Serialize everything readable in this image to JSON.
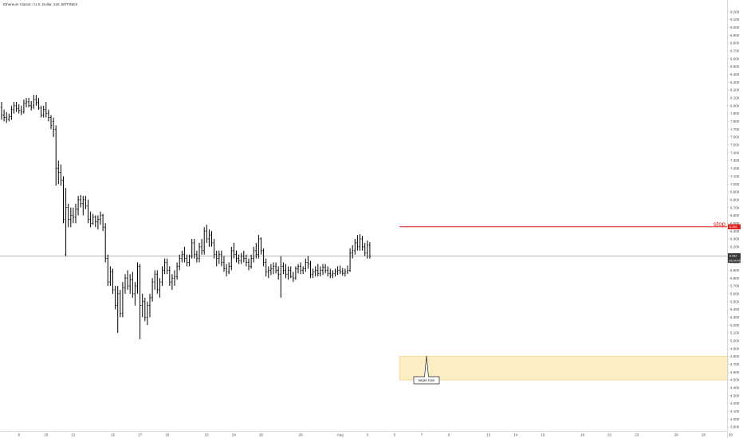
{
  "chart_data": {
    "type": "bar",
    "title": "Ethereum Classic / U.S. Dollar, 240, BITFINEX",
    "ylim": [
      3.85,
      9.35
    ],
    "y_ticks": [
      "9.200",
      "9.100",
      "9.000",
      "8.900",
      "8.800",
      "8.700",
      "8.600",
      "8.500",
      "8.400",
      "8.300",
      "8.200",
      "8.100",
      "8.000",
      "7.900",
      "7.800",
      "7.700",
      "7.600",
      "7.500",
      "7.400",
      "7.300",
      "7.200",
      "7.100",
      "7.000",
      "6.900",
      "6.800",
      "6.700",
      "6.600",
      "6.500",
      "6.400",
      "6.300",
      "6.200",
      "6.100",
      "6.000",
      "5.900",
      "5.800",
      "5.700",
      "5.600",
      "5.500",
      "5.400",
      "5.300",
      "5.200",
      "5.100",
      "5.000",
      "4.900",
      "4.800",
      "4.700",
      "4.600",
      "4.500",
      "4.400",
      "4.300",
      "4.200",
      "4.100",
      "4.000",
      "3.900"
    ],
    "x_ticks": [
      {
        "label": "8",
        "bar": 7
      },
      {
        "label": "10",
        "bar": 18
      },
      {
        "label": "12",
        "bar": 29
      },
      {
        "label": "15",
        "bar": 45
      },
      {
        "label": "17",
        "bar": 56
      },
      {
        "label": "19",
        "bar": 67
      },
      {
        "label": "22",
        "bar": 83
      },
      {
        "label": "24",
        "bar": 94
      },
      {
        "label": "26",
        "bar": 105
      },
      {
        "label": "29",
        "bar": 121
      },
      {
        "label": "Aug",
        "bar": 137
      },
      {
        "label": "3",
        "bar": 148
      },
      {
        "label": "5",
        "bar": 159
      },
      {
        "label": "7",
        "bar": 170
      },
      {
        "label": "9",
        "bar": 181
      },
      {
        "label": "12",
        "bar": 197
      },
      {
        "label": "14",
        "bar": 208
      },
      {
        "label": "16",
        "bar": 219
      },
      {
        "label": "19",
        "bar": 235
      },
      {
        "label": "21",
        "bar": 246
      },
      {
        "label": "23",
        "bar": 257
      },
      {
        "label": "26",
        "bar": 273
      },
      {
        "label": "28",
        "bar": 284
      },
      {
        "label": "30",
        "bar": 295
      }
    ],
    "ohlc": [
      [
        7.98,
        8.05,
        7.82,
        7.88
      ],
      [
        7.88,
        7.95,
        7.8,
        7.85
      ],
      [
        7.85,
        7.92,
        7.78,
        7.83
      ],
      [
        7.83,
        7.9,
        7.8,
        7.86
      ],
      [
        7.86,
        8.0,
        7.82,
        7.95
      ],
      [
        7.95,
        8.05,
        7.9,
        8.0
      ],
      [
        8.0,
        8.05,
        7.92,
        7.96
      ],
      [
        7.96,
        8.02,
        7.9,
        7.94
      ],
      [
        7.94,
        8.0,
        7.88,
        7.92
      ],
      [
        7.92,
        8.08,
        7.9,
        8.03
      ],
      [
        8.03,
        8.1,
        7.98,
        8.05
      ],
      [
        8.05,
        8.1,
        7.98,
        8.0
      ],
      [
        8.0,
        8.06,
        7.94,
        7.98
      ],
      [
        8.0,
        8.14,
        7.96,
        8.08
      ],
      [
        8.08,
        8.14,
        8.0,
        8.04
      ],
      [
        8.04,
        8.1,
        7.95,
        7.97
      ],
      [
        7.97,
        8.0,
        7.85,
        7.88
      ],
      [
        7.88,
        8.0,
        7.85,
        7.95
      ],
      [
        7.95,
        8.05,
        7.85,
        7.9
      ],
      [
        7.9,
        7.95,
        7.8,
        7.85
      ],
      [
        7.85,
        7.88,
        7.7,
        7.75
      ],
      [
        7.8,
        7.85,
        7.6,
        7.7
      ],
      [
        7.7,
        7.75,
        6.98,
        7.2
      ],
      [
        7.2,
        7.3,
        7.0,
        7.15
      ],
      [
        7.15,
        7.25,
        6.98,
        7.05
      ],
      [
        7.05,
        7.1,
        6.5,
        6.55
      ],
      [
        6.1,
        6.95,
        6.08,
        6.7
      ],
      [
        6.7,
        6.75,
        6.45,
        6.55
      ],
      [
        6.55,
        6.7,
        6.45,
        6.6
      ],
      [
        6.6,
        6.7,
        6.5,
        6.58
      ],
      [
        6.58,
        6.75,
        6.5,
        6.68
      ],
      [
        6.68,
        6.85,
        6.6,
        6.8
      ],
      [
        6.8,
        6.86,
        6.7,
        6.75
      ],
      [
        6.75,
        6.85,
        6.6,
        6.8
      ],
      [
        6.8,
        6.85,
        6.68,
        6.72
      ],
      [
        6.72,
        6.8,
        6.5,
        6.55
      ],
      [
        6.55,
        6.65,
        6.45,
        6.5
      ],
      [
        6.5,
        6.62,
        6.48,
        6.58
      ],
      [
        6.58,
        6.6,
        6.45,
        6.52
      ],
      [
        6.52,
        6.6,
        6.42,
        6.55
      ],
      [
        6.55,
        6.65,
        6.48,
        6.6
      ],
      [
        6.6,
        6.62,
        6.4,
        6.45
      ],
      [
        6.45,
        6.5,
        6.0,
        6.05
      ],
      [
        6.05,
        6.1,
        5.7,
        5.75
      ],
      [
        5.75,
        5.95,
        5.7,
        5.88
      ],
      [
        5.88,
        5.92,
        5.6,
        5.65
      ],
      [
        5.65,
        5.7,
        5.4,
        5.45
      ],
      [
        5.45,
        5.7,
        5.1,
        5.6
      ],
      [
        5.6,
        5.65,
        5.3,
        5.35
      ],
      [
        5.35,
        5.75,
        5.3,
        5.68
      ],
      [
        5.68,
        5.85,
        5.6,
        5.8
      ],
      [
        5.8,
        5.9,
        5.65,
        5.7
      ],
      [
        5.7,
        5.85,
        5.6,
        5.78
      ],
      [
        5.78,
        5.88,
        5.55,
        5.6
      ],
      [
        5.6,
        5.75,
        5.45,
        5.7
      ],
      [
        5.7,
        6.0,
        5.6,
        5.95
      ],
      [
        5.95,
        5.98,
        5.02,
        5.45
      ],
      [
        5.45,
        5.6,
        5.3,
        5.5
      ],
      [
        5.5,
        5.55,
        5.25,
        5.3
      ],
      [
        5.3,
        5.5,
        5.2,
        5.45
      ],
      [
        5.45,
        5.6,
        5.3,
        5.55
      ],
      [
        5.55,
        5.8,
        5.5,
        5.75
      ],
      [
        5.75,
        5.9,
        5.65,
        5.85
      ],
      [
        5.85,
        5.9,
        5.6,
        5.65
      ],
      [
        5.65,
        5.8,
        5.55,
        5.75
      ],
      [
        5.75,
        5.95,
        5.7,
        5.9
      ],
      [
        5.9,
        6.05,
        5.85,
        6.0
      ],
      [
        6.0,
        6.05,
        5.85,
        5.9
      ],
      [
        5.9,
        5.95,
        5.7,
        5.75
      ],
      [
        5.75,
        5.85,
        5.65,
        5.8
      ],
      [
        5.8,
        5.9,
        5.7,
        5.82
      ],
      [
        5.82,
        6.0,
        5.78,
        5.95
      ],
      [
        5.95,
        6.1,
        5.9,
        6.05
      ],
      [
        6.05,
        6.15,
        6.0,
        6.1
      ],
      [
        6.1,
        6.2,
        6.0,
        6.05
      ],
      [
        6.05,
        6.1,
        5.95,
        6.0
      ],
      [
        6.0,
        6.1,
        5.95,
        6.08
      ],
      [
        6.08,
        6.3,
        6.05,
        6.25
      ],
      [
        6.25,
        6.3,
        6.05,
        6.1
      ],
      [
        6.1,
        6.15,
        6.0,
        6.05
      ],
      [
        6.05,
        6.25,
        6.0,
        6.2
      ],
      [
        6.2,
        6.3,
        6.1,
        6.15
      ],
      [
        6.15,
        6.45,
        6.1,
        6.4
      ],
      [
        6.4,
        6.48,
        6.25,
        6.3
      ],
      [
        6.3,
        6.42,
        6.2,
        6.35
      ],
      [
        6.35,
        6.4,
        6.2,
        6.25
      ],
      [
        6.25,
        6.3,
        6.05,
        6.1
      ],
      [
        6.1,
        6.15,
        5.95,
        6.05
      ],
      [
        6.05,
        6.15,
        5.98,
        6.1
      ],
      [
        6.1,
        6.15,
        5.95,
        6.0
      ],
      [
        6.0,
        6.08,
        5.88,
        5.92
      ],
      [
        5.92,
        5.98,
        5.82,
        5.88
      ],
      [
        5.88,
        6.0,
        5.85,
        5.95
      ],
      [
        5.95,
        6.2,
        5.9,
        6.15
      ],
      [
        6.15,
        6.25,
        6.05,
        6.1
      ],
      [
        6.1,
        6.15,
        6.0,
        6.05
      ],
      [
        6.05,
        6.1,
        5.98,
        6.02
      ],
      [
        6.02,
        6.12,
        5.98,
        6.08
      ],
      [
        6.08,
        6.15,
        6.0,
        6.05
      ],
      [
        6.05,
        6.1,
        5.95,
        6.0
      ],
      [
        6.0,
        6.05,
        5.9,
        5.95
      ],
      [
        5.95,
        6.1,
        5.92,
        6.05
      ],
      [
        6.05,
        6.2,
        6.0,
        6.15
      ],
      [
        6.15,
        6.25,
        6.05,
        6.1
      ],
      [
        6.1,
        6.35,
        6.05,
        6.3
      ],
      [
        6.3,
        6.32,
        6.1,
        6.15
      ],
      [
        6.15,
        6.18,
        5.95,
        6.0
      ],
      [
        6.0,
        6.05,
        5.82,
        5.88
      ],
      [
        5.88,
        5.95,
        5.8,
        5.9
      ],
      [
        5.9,
        5.98,
        5.84,
        5.92
      ],
      [
        5.92,
        6.0,
        5.85,
        5.95
      ],
      [
        5.95,
        6.0,
        5.86,
        5.9
      ],
      [
        5.9,
        5.95,
        5.78,
        5.85
      ],
      [
        5.85,
        6.08,
        5.55,
        5.95
      ],
      [
        5.95,
        6.0,
        5.85,
        5.9
      ],
      [
        5.9,
        5.98,
        5.8,
        5.85
      ],
      [
        5.85,
        5.95,
        5.78,
        5.9
      ],
      [
        5.9,
        5.95,
        5.8,
        5.82
      ],
      [
        5.82,
        5.88,
        5.75,
        5.8
      ],
      [
        5.8,
        5.95,
        5.78,
        5.92
      ],
      [
        5.92,
        5.98,
        5.86,
        5.95
      ],
      [
        5.95,
        6.0,
        5.85,
        5.9
      ],
      [
        5.9,
        5.95,
        5.85,
        5.92
      ],
      [
        5.92,
        6.05,
        5.88,
        6.0
      ],
      [
        6.0,
        6.08,
        5.92,
        5.98
      ],
      [
        5.98,
        6.02,
        5.8,
        5.85
      ],
      [
        5.85,
        5.92,
        5.8,
        5.88
      ],
      [
        5.88,
        5.95,
        5.82,
        5.9
      ],
      [
        5.9,
        5.98,
        5.82,
        5.86
      ],
      [
        5.86,
        5.95,
        5.82,
        5.9
      ],
      [
        5.9,
        5.98,
        5.84,
        5.94
      ],
      [
        5.94,
        5.98,
        5.86,
        5.9
      ],
      [
        5.9,
        5.95,
        5.82,
        5.86
      ],
      [
        5.86,
        5.92,
        5.8,
        5.84
      ],
      [
        5.84,
        5.9,
        5.8,
        5.86
      ],
      [
        5.86,
        5.92,
        5.82,
        5.88
      ],
      [
        5.88,
        5.95,
        5.84,
        5.9
      ],
      [
        5.9,
        5.96,
        5.85,
        5.88
      ],
      [
        5.88,
        5.93,
        5.83,
        5.86
      ],
      [
        5.86,
        5.92,
        5.82,
        5.88
      ],
      [
        5.88,
        5.96,
        5.85,
        5.9
      ],
      [
        5.9,
        6.18,
        5.88,
        6.12
      ],
      [
        6.12,
        6.22,
        6.05,
        6.15
      ],
      [
        6.15,
        6.3,
        6.1,
        6.25
      ],
      [
        6.25,
        6.35,
        6.15,
        6.2
      ],
      [
        6.2,
        6.36,
        6.15,
        6.3
      ],
      [
        6.3,
        6.34,
        6.15,
        6.2
      ],
      [
        6.2,
        6.25,
        6.08,
        6.12
      ],
      [
        6.12,
        6.28,
        6.05,
        6.22
      ],
      [
        6.22,
        6.26,
        6.05,
        6.08
      ]
    ],
    "last_price": {
      "value": 6.082,
      "label": "6.082",
      "countdown": "03:04:40"
    },
    "stop_level": {
      "value": 6.455,
      "label": "6.455",
      "text": "stop"
    },
    "target_zone": {
      "from": 4.5,
      "to": 4.8,
      "label": "target zone"
    }
  },
  "colors": {
    "bars": "#000000",
    "stop": "#e0201c",
    "zone_fill": "#fbeec5",
    "zone_border": "#f0c96a",
    "price_line": "#8c8c8c",
    "axis_text": "#4a4a4a"
  }
}
